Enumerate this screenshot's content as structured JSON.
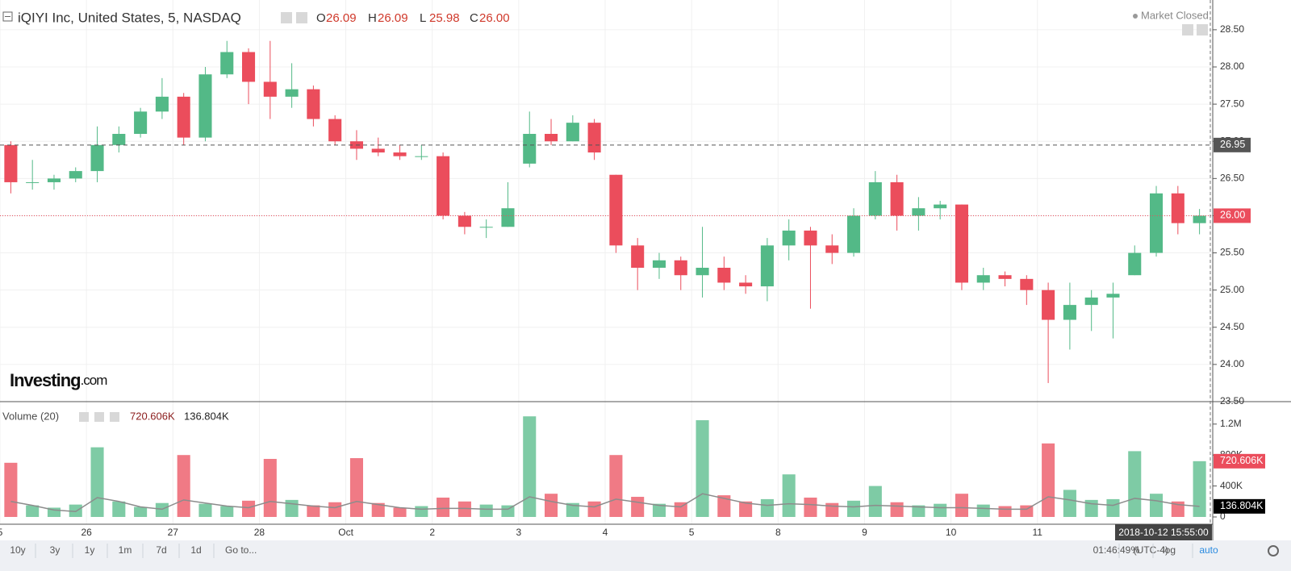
{
  "header": {
    "ohlc": [
      {
        "label": "O",
        "value": "26.09"
      },
      {
        "label": "H",
        "value": "26.09"
      },
      {
        "label": "L",
        "value": "25.98"
      },
      {
        "label": "C",
        "value": "26.00"
      }
    ],
    "status": "Market Closed",
    "logo": "Investing",
    "logo_suffix": ".com",
    "crosshair_time": "2018-10-12 15:55:00"
  },
  "chart_data": [
    {
      "type": "candlestick",
      "title": "iQIYI Inc, United States, 5, NASDAQ",
      "categories": [
        "5",
        null,
        null,
        null,
        "26",
        null,
        null,
        null,
        "27",
        null,
        null,
        null,
        "28",
        null,
        null,
        null,
        "Oct",
        null,
        null,
        null,
        "2",
        null,
        null,
        null,
        "3",
        null,
        null,
        null,
        "4",
        null,
        null,
        null,
        "5",
        null,
        null,
        null,
        "8",
        null,
        null,
        null,
        "9",
        null,
        null,
        null,
        "10",
        null,
        null,
        null,
        "11",
        null,
        null,
        null,
        null,
        null,
        null,
        null
      ],
      "open": [
        26.95,
        26.45,
        26.45,
        26.5,
        26.6,
        26.95,
        27.1,
        27.4,
        27.6,
        27.05,
        27.9,
        28.2,
        27.8,
        27.6,
        27.7,
        27.3,
        27.0,
        26.9,
        26.85,
        26.8,
        26.8,
        26.0,
        25.85,
        25.85,
        26.7,
        27.1,
        27.0,
        27.25,
        26.55,
        25.6,
        25.3,
        25.4,
        25.2,
        25.3,
        25.1,
        25.05,
        25.6,
        25.8,
        25.6,
        25.5,
        26.0,
        26.45,
        26.0,
        26.1,
        26.15,
        25.1,
        25.2,
        25.15,
        25.0,
        24.6,
        24.8,
        24.9,
        25.2,
        25.5,
        26.3,
        25.9
      ],
      "high": [
        27.0,
        26.75,
        26.55,
        26.65,
        27.2,
        27.2,
        27.45,
        27.85,
        27.65,
        28.0,
        28.35,
        28.25,
        28.35,
        28.05,
        27.75,
        27.35,
        27.15,
        27.05,
        26.95,
        26.95,
        26.85,
        26.05,
        25.95,
        26.45,
        27.4,
        27.3,
        27.35,
        27.3,
        26.55,
        25.7,
        25.5,
        25.45,
        25.85,
        25.45,
        25.2,
        25.7,
        25.95,
        25.85,
        25.75,
        26.1,
        26.6,
        26.55,
        26.25,
        26.2,
        26.15,
        25.3,
        25.25,
        25.2,
        25.1,
        25.1,
        25.0,
        25.1,
        25.6,
        26.4,
        26.4,
        26.09
      ],
      "low": [
        26.3,
        26.35,
        26.35,
        26.45,
        26.45,
        26.85,
        27.05,
        27.3,
        26.95,
        27.0,
        27.85,
        27.5,
        27.3,
        27.45,
        27.2,
        26.95,
        26.75,
        26.8,
        26.75,
        26.75,
        25.95,
        25.75,
        25.7,
        25.85,
        26.65,
        26.95,
        27.0,
        26.75,
        25.5,
        25.0,
        25.15,
        25.0,
        24.9,
        25.0,
        24.95,
        24.85,
        25.4,
        24.75,
        25.35,
        25.45,
        25.95,
        25.8,
        25.8,
        25.95,
        25.0,
        25.0,
        25.05,
        24.8,
        23.75,
        24.2,
        24.45,
        24.35,
        25.2,
        25.45,
        25.75,
        25.75
      ],
      "close": [
        26.45,
        26.45,
        26.5,
        26.6,
        26.95,
        27.1,
        27.4,
        27.6,
        27.05,
        27.9,
        28.2,
        27.8,
        27.6,
        27.7,
        27.3,
        27.0,
        26.9,
        26.85,
        26.8,
        26.8,
        26.0,
        25.85,
        25.85,
        26.1,
        27.1,
        27.0,
        27.25,
        26.85,
        25.6,
        25.3,
        25.4,
        25.2,
        25.3,
        25.1,
        25.05,
        25.6,
        25.8,
        25.6,
        25.5,
        26.0,
        26.45,
        26.0,
        26.1,
        26.15,
        25.1,
        25.2,
        25.15,
        25.0,
        24.6,
        24.8,
        24.9,
        24.95,
        25.5,
        26.3,
        25.9,
        26.0
      ],
      "up_color": "#53b987",
      "down_color": "#eb4d5c",
      "ylim": [
        23.5,
        28.9
      ],
      "yticks": [
        {
          "value": 23.5,
          "label": "23.50"
        },
        {
          "value": 24,
          "label": "24.00"
        },
        {
          "value": 24.5,
          "label": "24.50"
        },
        {
          "value": 25,
          "label": "25.00"
        },
        {
          "value": 25.5,
          "label": "25.50"
        },
        {
          "value": 26,
          "label": "26.00"
        },
        {
          "value": 26.5,
          "label": "26.50"
        },
        {
          "value": 27,
          "label": "27.00"
        },
        {
          "value": 27.5,
          "label": "27.50"
        },
        {
          "value": 28,
          "label": "28.00"
        },
        {
          "value": 28.5,
          "label": "28.50"
        }
      ],
      "grid": true,
      "reference_lines": [
        {
          "value": 26.95,
          "label": "26.95",
          "color": "#555555",
          "dash": "dashed"
        },
        {
          "value": 26,
          "label": "26.00",
          "color": "#eb4d5c",
          "dash": "dotted"
        }
      ]
    },
    {
      "type": "bar",
      "title": "Volume (20)",
      "values": [
        700000,
        150000,
        120000,
        160000,
        900000,
        200000,
        130000,
        180000,
        800000,
        170000,
        140000,
        210000,
        750000,
        220000,
        150000,
        190000,
        760000,
        180000,
        120000,
        140000,
        250000,
        200000,
        160000,
        150000,
        1300000,
        300000,
        180000,
        200000,
        800000,
        260000,
        170000,
        190000,
        1250000,
        280000,
        200000,
        230000,
        550000,
        250000,
        180000,
        210000,
        400000,
        190000,
        150000,
        170000,
        300000,
        160000,
        140000,
        150000,
        950000,
        350000,
        220000,
        230000,
        850000,
        300000,
        200000,
        720606
      ],
      "ma_values": [
        200000,
        150000,
        90000,
        70000,
        250000,
        200000,
        130000,
        100000,
        220000,
        180000,
        140000,
        120000,
        200000,
        170000,
        140000,
        120000,
        200000,
        160000,
        120000,
        100000,
        110000,
        110000,
        100000,
        100000,
        260000,
        200000,
        150000,
        130000,
        230000,
        190000,
        150000,
        130000,
        300000,
        240000,
        180000,
        150000,
        170000,
        160000,
        140000,
        130000,
        150000,
        140000,
        130000,
        120000,
        120000,
        110000,
        100000,
        100000,
        260000,
        220000,
        170000,
        150000,
        240000,
        210000,
        160000,
        136804
      ],
      "ma_color": "#8c8c8c",
      "ylim": [
        -94000,
        1490000
      ],
      "yticks": [
        0,
        {
          "value": 400000,
          "label": "400K"
        },
        {
          "value": 800000,
          "label": "800K"
        },
        {
          "value": 1200000,
          "label": "1.2M"
        }
      ],
      "last_markers": [
        {
          "value": 720606,
          "label": "720.606K",
          "color": "#eb4d5c"
        },
        {
          "value": 136804,
          "label": "136.804K",
          "color": "#000000"
        }
      ]
    }
  ],
  "toolbar": {
    "ranges": [
      "10y",
      "3y",
      "1y",
      "1m",
      "7d",
      "1d"
    ],
    "goto": "Go to...",
    "clock": "01:46:49 (UTC-4)",
    "options": [
      "%",
      "log",
      "auto"
    ]
  }
}
